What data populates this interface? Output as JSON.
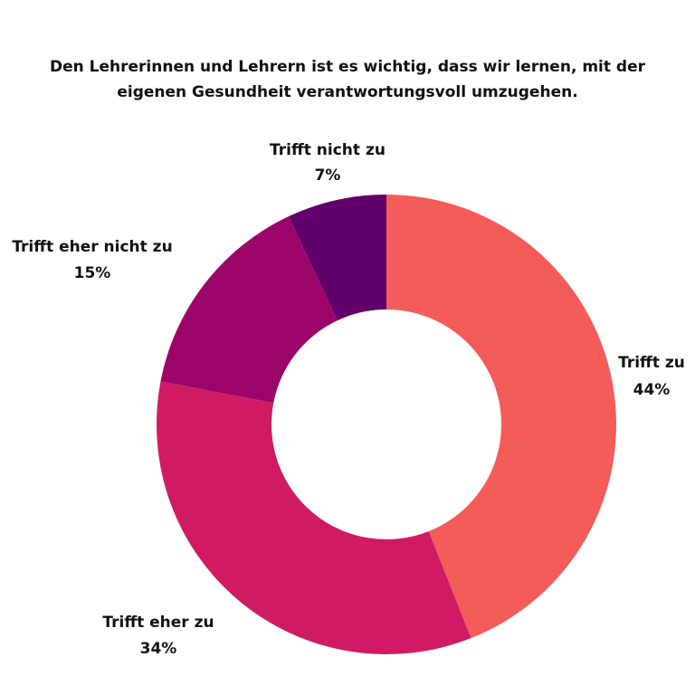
{
  "chart_data": {
    "type": "pie",
    "variant": "donut",
    "title": "Den Lehrerinnen und Lehrern ist es wichtig, dass wir lernen, mit der eigenen Gesundheit verantwortungsvoll umzugehen.",
    "slices": [
      {
        "label": "Trifft zu",
        "value": 44,
        "value_label": "44%",
        "color": "#f45c5a"
      },
      {
        "label": "Trifft eher zu",
        "value": 34,
        "value_label": "34%",
        "color": "#d01b64"
      },
      {
        "label": "Trifft eher nicht zu",
        "value": 15,
        "value_label": "15%",
        "color": "#9b0569"
      },
      {
        "label": "Trifft nicht zu",
        "value": 7,
        "value_label": "7%",
        "color": "#62006b"
      }
    ],
    "legend": "none"
  }
}
